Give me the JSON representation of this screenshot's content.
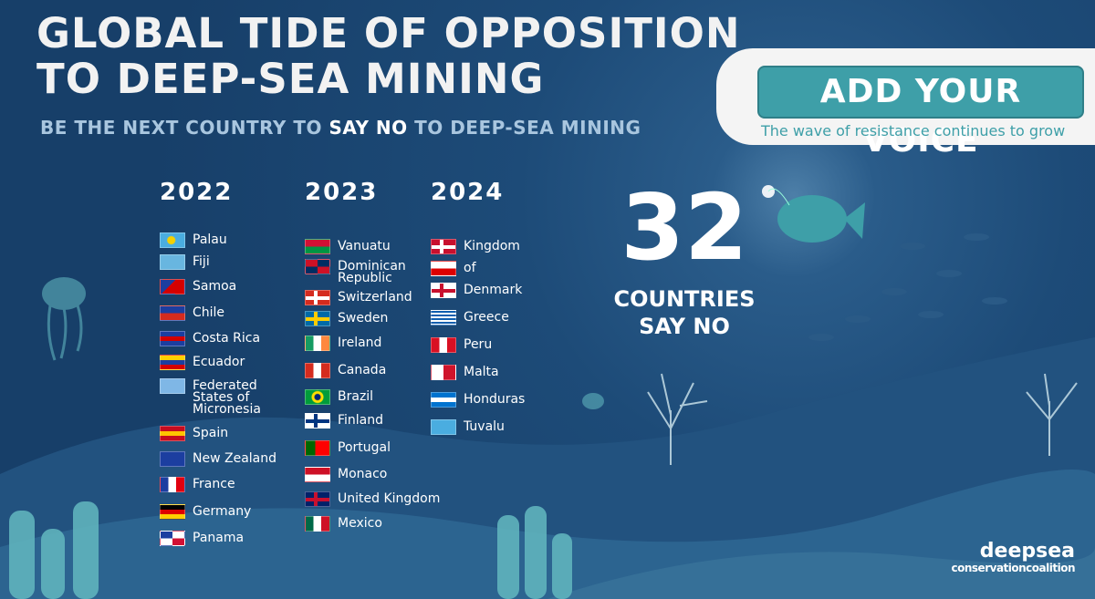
{
  "title": [
    "GLOBAL TIDE OF OPPOSITION",
    "TO DEEP-SEA MINING"
  ],
  "subtitle": {
    "before": "BE THE NEXT COUNTRY TO ",
    "emphasis": "SAY NO",
    "after": " TO DEEP-SEA MINING"
  },
  "cta": {
    "button": "ADD YOUR VOICE",
    "caption": "The wave of resistance continues to grow"
  },
  "columns": [
    {
      "year": "2022",
      "countries": [
        "Palau",
        "Fiji",
        "Samoa",
        "Chile",
        "Costa Rica",
        "Ecuador",
        "Federated States of Micronesia",
        "Spain",
        "New Zealand",
        "France",
        "Germany",
        "Panama"
      ]
    },
    {
      "year": "2023",
      "countries": [
        "Vanuatu",
        "Dominican Republic",
        "Switzerland",
        "Sweden",
        "Ireland",
        "Canada",
        "Brazil",
        "Finland",
        "Portugal",
        "Monaco",
        "United Kingdom",
        "Mexico"
      ]
    },
    {
      "year": "2024",
      "countries": [
        "Kingdom",
        "of",
        "Denmark",
        "Greece",
        "Peru",
        "Malta",
        "Honduras",
        "Tuvalu"
      ]
    }
  ],
  "counter": {
    "number": "32",
    "line1": "COUNTRIES",
    "line2": "SAY NO"
  },
  "logo": {
    "top": "deepsea",
    "bottom": "conservationcoalition"
  }
}
